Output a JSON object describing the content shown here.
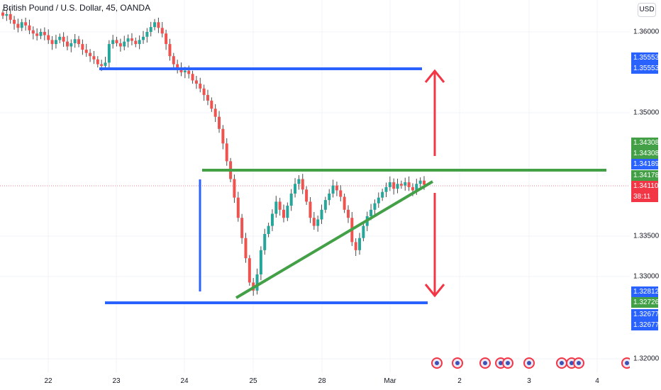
{
  "header": {
    "title": "British Pound / U.S. Dollar, 45, OANDA",
    "currency": "USD"
  },
  "chart_data": {
    "type": "candlestick",
    "symbol": "British Pound / U.S. Dollar",
    "interval": "45",
    "source": "OANDA",
    "y_ticks": [
      "1.36000",
      "1.35000",
      "1.33500",
      "1.33000",
      "1.32000"
    ],
    "x_ticks": [
      "22",
      "23",
      "24",
      "25",
      "28",
      "Mar",
      "2",
      "3",
      "4"
    ],
    "price_labels": [
      {
        "text": "1.35553",
        "color": "#2962ff"
      },
      {
        "text": "1.35553",
        "color": "#2962ff"
      },
      {
        "text": "1.34308",
        "color": "#43a047"
      },
      {
        "text": "1.34308",
        "color": "#43a047"
      },
      {
        "text": "1.34189",
        "color": "#2962ff"
      },
      {
        "text": "1.34178",
        "color": "#43a047"
      },
      {
        "text": "1.34110",
        "color": "#f23645"
      },
      {
        "text": "38:11",
        "color": "#f23645"
      },
      {
        "text": "1.32812",
        "color": "#2962ff"
      },
      {
        "text": "1.32726",
        "color": "#43a047"
      },
      {
        "text": "1.32677",
        "color": "#2962ff"
      },
      {
        "text": "1.32677",
        "color": "#2962ff"
      }
    ],
    "candles_close": [
      1.362,
      1.3622,
      1.3615,
      1.361,
      1.3605,
      1.3612,
      1.3608,
      1.3602,
      1.3598,
      1.3595,
      1.36,
      1.3596,
      1.359,
      1.3585,
      1.359,
      1.3594,
      1.3588,
      1.3582,
      1.3586,
      1.3591,
      1.3585,
      1.3578,
      1.3574,
      1.357,
      1.3566,
      1.356,
      1.3558,
      1.3562,
      1.3585,
      1.359,
      1.3586,
      1.3582,
      1.3588,
      1.3592,
      1.3589,
      1.3585,
      1.359,
      1.3594,
      1.36,
      1.3606,
      1.3612,
      1.3605,
      1.3598,
      1.3585,
      1.357,
      1.356,
      1.3555,
      1.355,
      1.3552,
      1.3548,
      1.354,
      1.3536,
      1.353,
      1.3522,
      1.3515,
      1.3505,
      1.3495,
      1.348,
      1.3462,
      1.344,
      1.3418,
      1.3395,
      1.337,
      1.3345,
      1.332,
      1.329,
      1.328,
      1.33,
      1.333,
      1.335,
      1.336,
      1.3375,
      1.339,
      1.338,
      1.337,
      1.3385,
      1.34,
      1.3412,
      1.3418,
      1.3405,
      1.339,
      1.337,
      1.336,
      1.3368,
      1.338,
      1.3392,
      1.34,
      1.341,
      1.3404,
      1.3396,
      1.338,
      1.337,
      1.334,
      1.333,
      1.3345,
      1.336,
      1.3372,
      1.338,
      1.3388,
      1.3395,
      1.3402,
      1.3408,
      1.3414,
      1.3406,
      1.3412,
      1.341,
      1.3414,
      1.3408,
      1.3404,
      1.3412,
      1.3416,
      1.3411
    ],
    "annotations": [
      {
        "type": "hline",
        "color": "#2962ff",
        "price": 1.35553
      },
      {
        "type": "hline",
        "color": "#2962ff",
        "price": 1.32677
      },
      {
        "type": "hline",
        "color": "#43a047",
        "price": 1.34189
      },
      {
        "type": "trendline",
        "color": "#43a047"
      },
      {
        "type": "vline",
        "color": "#2962ff"
      },
      {
        "type": "arrow-up",
        "color": "#f23645"
      },
      {
        "type": "arrow-down",
        "color": "#f23645"
      }
    ],
    "colors": {
      "up": "#26a69a",
      "down": "#ef5350",
      "wick": "#4a4a4a"
    }
  }
}
